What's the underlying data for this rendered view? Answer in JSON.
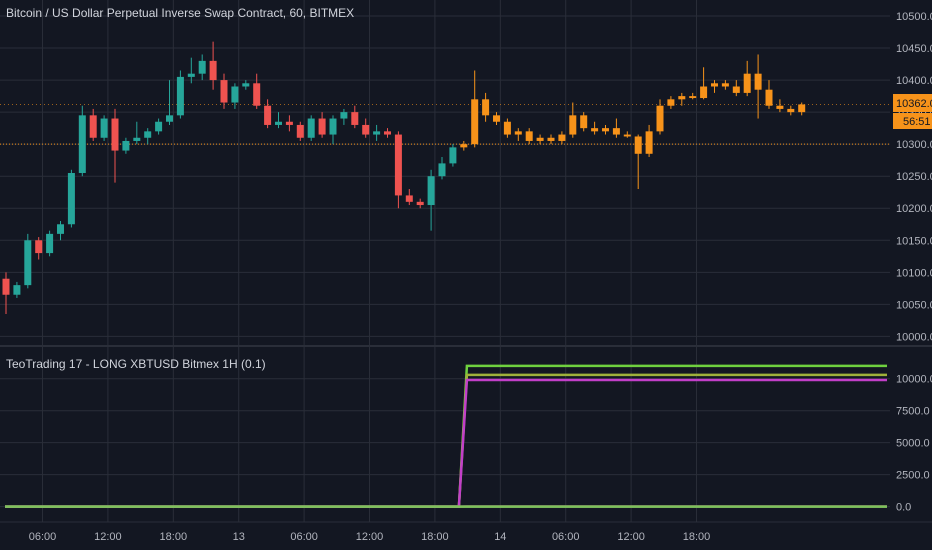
{
  "colors": {
    "background": "#131722",
    "grid": "#2a2e39",
    "text": "#b2b5be",
    "up": "#26a69a",
    "down": "#ef5350",
    "highlight": "#f7931a",
    "ref_line": "#f7931a",
    "line_bright_green": "#6fd13f",
    "line_olive": "#9fb13a",
    "line_magenta": "#c23fc9",
    "line_mauve": "#c87f8f",
    "line_green": "#7bc35a"
  },
  "main_title": "Bitcoin / US Dollar Perpetual Inverse Swap Contract, 60, BITMEX",
  "price_tag": {
    "price": "10362.0",
    "countdown": "56:51"
  },
  "reference_price": 10300,
  "chart_data": [
    {
      "type": "candlestick",
      "title": "Bitcoin / US Dollar Perpetual Inverse Swap Contract, 60, BITMEX",
      "ylim": [
        9985,
        10525
      ],
      "y_ticks": [
        "10500.0",
        "10450.0",
        "10400.0",
        "10350.0",
        "10300.0",
        "10250.0",
        "10200.0",
        "10150.0",
        "10100.0",
        "10050.0",
        "10000.0"
      ],
      "x_ticks": [
        "06:00",
        "12:00",
        "18:00",
        "13",
        "06:00",
        "12:00",
        "18:00",
        "14",
        "06:00",
        "12:00",
        "18:00"
      ],
      "candles": [
        {
          "o": 10090,
          "h": 10100,
          "l": 10035,
          "c": 10065,
          "hl": false
        },
        {
          "o": 10065,
          "h": 10085,
          "l": 10060,
          "c": 10080,
          "hl": false
        },
        {
          "o": 10080,
          "h": 10160,
          "l": 10075,
          "c": 10150,
          "hl": false
        },
        {
          "o": 10150,
          "h": 10155,
          "l": 10120,
          "c": 10130,
          "hl": false
        },
        {
          "o": 10130,
          "h": 10165,
          "l": 10125,
          "c": 10160,
          "hl": false
        },
        {
          "o": 10160,
          "h": 10180,
          "l": 10150,
          "c": 10175,
          "hl": false
        },
        {
          "o": 10175,
          "h": 10260,
          "l": 10170,
          "c": 10255,
          "hl": false
        },
        {
          "o": 10255,
          "h": 10360,
          "l": 10250,
          "c": 10345,
          "hl": false
        },
        {
          "o": 10345,
          "h": 10355,
          "l": 10305,
          "c": 10310,
          "hl": false
        },
        {
          "o": 10310,
          "h": 10345,
          "l": 10305,
          "c": 10340,
          "hl": false
        },
        {
          "o": 10340,
          "h": 10355,
          "l": 10240,
          "c": 10290,
          "hl": false
        },
        {
          "o": 10290,
          "h": 10310,
          "l": 10285,
          "c": 10305,
          "hl": false
        },
        {
          "o": 10305,
          "h": 10335,
          "l": 10300,
          "c": 10310,
          "hl": false
        },
        {
          "o": 10310,
          "h": 10325,
          "l": 10300,
          "c": 10320,
          "hl": false
        },
        {
          "o": 10320,
          "h": 10340,
          "l": 10315,
          "c": 10335,
          "hl": false
        },
        {
          "o": 10335,
          "h": 10400,
          "l": 10330,
          "c": 10345,
          "hl": false
        },
        {
          "o": 10345,
          "h": 10415,
          "l": 10340,
          "c": 10405,
          "hl": false
        },
        {
          "o": 10405,
          "h": 10435,
          "l": 10395,
          "c": 10410,
          "hl": false
        },
        {
          "o": 10410,
          "h": 10440,
          "l": 10400,
          "c": 10430,
          "hl": false
        },
        {
          "o": 10430,
          "h": 10460,
          "l": 10385,
          "c": 10400,
          "hl": false
        },
        {
          "o": 10400,
          "h": 10410,
          "l": 10355,
          "c": 10365,
          "hl": false
        },
        {
          "o": 10365,
          "h": 10395,
          "l": 10355,
          "c": 10390,
          "hl": false
        },
        {
          "o": 10390,
          "h": 10400,
          "l": 10385,
          "c": 10395,
          "hl": false
        },
        {
          "o": 10395,
          "h": 10410,
          "l": 10355,
          "c": 10360,
          "hl": false
        },
        {
          "o": 10360,
          "h": 10370,
          "l": 10325,
          "c": 10330,
          "hl": false
        },
        {
          "o": 10330,
          "h": 10350,
          "l": 10325,
          "c": 10335,
          "hl": false
        },
        {
          "o": 10335,
          "h": 10345,
          "l": 10320,
          "c": 10330,
          "hl": false
        },
        {
          "o": 10330,
          "h": 10335,
          "l": 10305,
          "c": 10310,
          "hl": false
        },
        {
          "o": 10310,
          "h": 10345,
          "l": 10305,
          "c": 10340,
          "hl": false
        },
        {
          "o": 10340,
          "h": 10350,
          "l": 10310,
          "c": 10315,
          "hl": false
        },
        {
          "o": 10315,
          "h": 10345,
          "l": 10300,
          "c": 10340,
          "hl": false
        },
        {
          "o": 10340,
          "h": 10355,
          "l": 10330,
          "c": 10350,
          "hl": false
        },
        {
          "o": 10350,
          "h": 10360,
          "l": 10325,
          "c": 10330,
          "hl": false
        },
        {
          "o": 10330,
          "h": 10340,
          "l": 10310,
          "c": 10315,
          "hl": false
        },
        {
          "o": 10315,
          "h": 10330,
          "l": 10305,
          "c": 10320,
          "hl": false
        },
        {
          "o": 10320,
          "h": 10325,
          "l": 10310,
          "c": 10315,
          "hl": false
        },
        {
          "o": 10315,
          "h": 10320,
          "l": 10200,
          "c": 10220,
          "hl": false
        },
        {
          "o": 10220,
          "h": 10230,
          "l": 10205,
          "c": 10210,
          "hl": false
        },
        {
          "o": 10210,
          "h": 10215,
          "l": 10200,
          "c": 10205,
          "hl": false
        },
        {
          "o": 10205,
          "h": 10260,
          "l": 10165,
          "c": 10250,
          "hl": false
        },
        {
          "o": 10250,
          "h": 10280,
          "l": 10245,
          "c": 10270,
          "hl": false
        },
        {
          "o": 10270,
          "h": 10300,
          "l": 10265,
          "c": 10295,
          "hl": false
        },
        {
          "o": 10295,
          "h": 10305,
          "l": 10290,
          "c": 10300,
          "hl": true
        },
        {
          "o": 10300,
          "h": 10415,
          "l": 10295,
          "c": 10370,
          "hl": true
        },
        {
          "o": 10370,
          "h": 10380,
          "l": 10335,
          "c": 10345,
          "hl": true
        },
        {
          "o": 10345,
          "h": 10350,
          "l": 10330,
          "c": 10335,
          "hl": true
        },
        {
          "o": 10335,
          "h": 10340,
          "l": 10310,
          "c": 10315,
          "hl": true
        },
        {
          "o": 10315,
          "h": 10325,
          "l": 10305,
          "c": 10320,
          "hl": true
        },
        {
          "o": 10320,
          "h": 10325,
          "l": 10300,
          "c": 10305,
          "hl": true
        },
        {
          "o": 10305,
          "h": 10315,
          "l": 10300,
          "c": 10310,
          "hl": true
        },
        {
          "o": 10310,
          "h": 10315,
          "l": 10300,
          "c": 10305,
          "hl": true
        },
        {
          "o": 10305,
          "h": 10320,
          "l": 10300,
          "c": 10315,
          "hl": true
        },
        {
          "o": 10315,
          "h": 10365,
          "l": 10310,
          "c": 10345,
          "hl": true
        },
        {
          "o": 10345,
          "h": 10350,
          "l": 10320,
          "c": 10325,
          "hl": true
        },
        {
          "o": 10325,
          "h": 10335,
          "l": 10315,
          "c": 10320,
          "hl": true
        },
        {
          "o": 10320,
          "h": 10330,
          "l": 10315,
          "c": 10325,
          "hl": true
        },
        {
          "o": 10325,
          "h": 10340,
          "l": 10310,
          "c": 10315,
          "hl": true
        },
        {
          "o": 10315,
          "h": 10320,
          "l": 10310,
          "c": 10312,
          "hl": true
        },
        {
          "o": 10312,
          "h": 10315,
          "l": 10230,
          "c": 10285,
          "hl": true
        },
        {
          "o": 10285,
          "h": 10330,
          "l": 10280,
          "c": 10320,
          "hl": true
        },
        {
          "o": 10320,
          "h": 10370,
          "l": 10315,
          "c": 10360,
          "hl": true
        },
        {
          "o": 10360,
          "h": 10375,
          "l": 10355,
          "c": 10370,
          "hl": true
        },
        {
          "o": 10370,
          "h": 10380,
          "l": 10360,
          "c": 10375,
          "hl": true
        },
        {
          "o": 10375,
          "h": 10380,
          "l": 10370,
          "c": 10372,
          "hl": true
        },
        {
          "o": 10372,
          "h": 10420,
          "l": 10370,
          "c": 10390,
          "hl": true
        },
        {
          "o": 10390,
          "h": 10400,
          "l": 10380,
          "c": 10395,
          "hl": true
        },
        {
          "o": 10395,
          "h": 10400,
          "l": 10385,
          "c": 10390,
          "hl": true
        },
        {
          "o": 10390,
          "h": 10400,
          "l": 10375,
          "c": 10380,
          "hl": true
        },
        {
          "o": 10380,
          "h": 10430,
          "l": 10375,
          "c": 10410,
          "hl": true
        },
        {
          "o": 10410,
          "h": 10440,
          "l": 10340,
          "c": 10385,
          "hl": true
        },
        {
          "o": 10385,
          "h": 10400,
          "l": 10355,
          "c": 10360,
          "hl": true
        },
        {
          "o": 10360,
          "h": 10370,
          "l": 10350,
          "c": 10355,
          "hl": true
        },
        {
          "o": 10355,
          "h": 10360,
          "l": 10345,
          "c": 10350,
          "hl": true
        },
        {
          "o": 10350,
          "h": 10365,
          "l": 10345,
          "c": 10362,
          "hl": true
        }
      ]
    },
    {
      "type": "line",
      "title": "TeoTrading 17 - LONG XBTUSD Bitmex 1H (0.1)",
      "ylim": [
        -1200,
        12400
      ],
      "y_ticks": [
        "10000.0",
        "7500.0",
        "5000.0",
        "2500.0",
        "0.0"
      ],
      "step_index": 41,
      "series": [
        {
          "values_before": 0,
          "values_after": 11000,
          "color": "#6fd13f"
        },
        {
          "values_before": 0,
          "values_after": 10300,
          "color": "#9fb13a"
        },
        {
          "values_before": 0,
          "values_after": 9900,
          "color": "#c23fc9"
        },
        {
          "values_before": 0,
          "values_after": 10,
          "color": "#c87f8f"
        },
        {
          "values_before": 0,
          "values_after": 0,
          "color": "#7bc35a"
        }
      ]
    }
  ]
}
